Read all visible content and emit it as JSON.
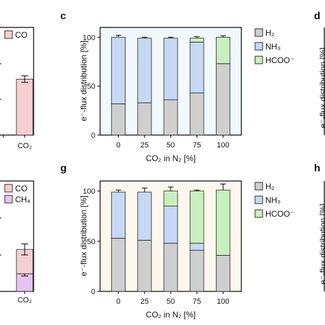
{
  "colors": {
    "H2": "#cfcfcf",
    "NH3": "#c6d8f3",
    "HCOO": "#c8f0bf",
    "CO": "#f6cfd0",
    "CH4": "#e7c3ef",
    "bg_top": "#f1f9fd",
    "bg_bottom": "#fdf8ee",
    "frame": "#000000"
  },
  "panels": {
    "c": {
      "letter": "c"
    },
    "d": {
      "letter": "d"
    },
    "g": {
      "letter": "g"
    },
    "h": {
      "letter": "h"
    }
  },
  "left_top": {
    "legend": [
      {
        "key": "CO",
        "label": "CO"
      }
    ],
    "xtick": "CO₂"
  },
  "left_bottom": {
    "legend": [
      {
        "key": "CO",
        "label": "CO"
      },
      {
        "key": "CH4",
        "label": "CH₄"
      }
    ],
    "xtick": "CO₂"
  },
  "right_axis_label_d": "e⁻-flux distribution [%]",
  "right_axis_label_h": "e⁻-flux distribution [%]",
  "chart_data": [
    {
      "panel": "c",
      "type": "bar",
      "stacked": true,
      "categories": [
        "0",
        "25",
        "50",
        "75",
        "100"
      ],
      "xlabel": "CO₂ in N₂ [%]",
      "ylabel": "e⁻-flux distribution [%]",
      "ylim": [
        0,
        110
      ],
      "yticks": [
        "0",
        "50",
        "100"
      ],
      "series": [
        {
          "name": "H₂",
          "key": "H2",
          "values": [
            32,
            33,
            36,
            43,
            73
          ],
          "err": [
            4,
            1.5,
            1,
            1.5,
            1.5
          ]
        },
        {
          "name": "NH₃",
          "key": "NH3",
          "values": [
            68,
            66,
            63,
            52,
            0
          ],
          "err": [
            2,
            1,
            1,
            2,
            0
          ]
        },
        {
          "name": "HCOO⁻",
          "key": "HCOO",
          "values": [
            0,
            0,
            0,
            4,
            27
          ],
          "err": [
            0,
            0,
            0,
            1.5,
            1.5
          ]
        }
      ],
      "legend_placement": "right"
    },
    {
      "panel": "g",
      "type": "bar",
      "stacked": true,
      "categories": [
        "0",
        "25",
        "50",
        "75",
        "100"
      ],
      "xlabel": "CO₂ in N₂ [%]",
      "ylabel": "e⁻-flux distribution [%]",
      "ylim": [
        0,
        110
      ],
      "yticks": [
        "0",
        "50",
        "100"
      ],
      "series": [
        {
          "name": "H₂",
          "key": "H2",
          "values": [
            53,
            51,
            48,
            41,
            36
          ],
          "err": [
            2,
            4,
            3,
            3,
            1.5
          ]
        },
        {
          "name": "NH₃",
          "key": "NH3",
          "values": [
            46,
            48,
            37,
            7,
            0
          ],
          "err": [
            2,
            4,
            2,
            2,
            0
          ]
        },
        {
          "name": "HCOO⁻",
          "key": "HCOO",
          "values": [
            0,
            0,
            15,
            52,
            65
          ],
          "err": [
            0,
            0,
            4,
            1,
            6
          ]
        }
      ],
      "legend_placement": "right"
    },
    {
      "panel": "left-top",
      "type": "bar",
      "categories": [
        "CO₂"
      ],
      "series": [
        {
          "name": "CO",
          "key": "CO",
          "values": [
            0.52
          ],
          "err": [
            0.03
          ]
        }
      ],
      "ylim": [
        0,
        1
      ]
    },
    {
      "panel": "left-bottom",
      "type": "bar",
      "stacked": true,
      "categories": [
        "CO₂"
      ],
      "series": [
        {
          "name": "CH₄",
          "key": "CH4",
          "values": [
            0.16
          ],
          "err": [
            0.02
          ]
        },
        {
          "name": "CO",
          "key": "CO",
          "values": [
            0.22
          ],
          "err": [
            0.05
          ]
        }
      ],
      "ylim": [
        0,
        1
      ]
    }
  ]
}
